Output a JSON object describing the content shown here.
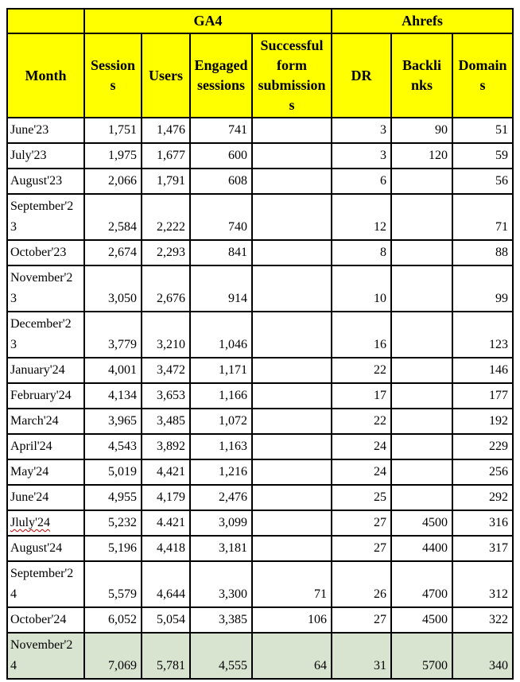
{
  "colors": {
    "header_bg": "#FFFF00",
    "highlight_row_bg": "#D8E4CF",
    "border": "#000000",
    "spellcheck_underline": "#C00000"
  },
  "table": {
    "group_header": {
      "corner": "",
      "ga4": "GA4",
      "ahrefs": "Ahrefs"
    },
    "columns": [
      "Month",
      "Sessions",
      "Users",
      "Engaged sessions",
      "Successful form submissions",
      "DR",
      "Backlinks",
      "Domains"
    ],
    "rows": [
      {
        "month": "June'23",
        "sessions": "1,751",
        "users": "1,476",
        "engaged_sessions": "741",
        "form_submissions": "",
        "dr": "3",
        "backlinks": "90",
        "domains": "51"
      },
      {
        "month": "July'23",
        "sessions": "1,975",
        "users": "1,677",
        "engaged_sessions": "600",
        "form_submissions": "",
        "dr": "3",
        "backlinks": "120",
        "domains": "59"
      },
      {
        "month": "August'23",
        "sessions": "2,066",
        "users": "1,791",
        "engaged_sessions": "608",
        "form_submissions": "",
        "dr": "6",
        "backlinks": "",
        "domains": "56"
      },
      {
        "month": "September'23",
        "sessions": "2,584",
        "users": "2,222",
        "engaged_sessions": "740",
        "form_submissions": "",
        "dr": "12",
        "backlinks": "",
        "domains": "71"
      },
      {
        "month": "October'23",
        "sessions": "2,674",
        "users": "2,293",
        "engaged_sessions": "841",
        "form_submissions": "",
        "dr": "8",
        "backlinks": "",
        "domains": "88"
      },
      {
        "month": "November'23",
        "sessions": "3,050",
        "users": "2,676",
        "engaged_sessions": "914",
        "form_submissions": "",
        "dr": "10",
        "backlinks": "",
        "domains": "99"
      },
      {
        "month": "December'23",
        "sessions": "3,779",
        "users": "3,210",
        "engaged_sessions": "1,046",
        "form_submissions": "",
        "dr": "16",
        "backlinks": "",
        "domains": "123"
      },
      {
        "month": "January'24",
        "sessions": "4,001",
        "users": "3,472",
        "engaged_sessions": "1,171",
        "form_submissions": "",
        "dr": "22",
        "backlinks": "",
        "domains": "146"
      },
      {
        "month": "February'24",
        "sessions": "4,134",
        "users": "3,653",
        "engaged_sessions": "1,166",
        "form_submissions": "",
        "dr": "17",
        "backlinks": "",
        "domains": "177"
      },
      {
        "month": "March'24",
        "sessions": "3,965",
        "users": "3,485",
        "engaged_sessions": "1,072",
        "form_submissions": "",
        "dr": "22",
        "backlinks": "",
        "domains": "192"
      },
      {
        "month": "April'24",
        "sessions": "4,543",
        "users": "3,892",
        "engaged_sessions": "1,163",
        "form_submissions": "",
        "dr": "24",
        "backlinks": "",
        "domains": "229"
      },
      {
        "month": "May'24",
        "sessions": "5,019",
        "users": "4,421",
        "engaged_sessions": "1,216",
        "form_submissions": "",
        "dr": "24",
        "backlinks": "",
        "domains": "256"
      },
      {
        "month": "June'24",
        "sessions": "4,955",
        "users": "4,179",
        "engaged_sessions": "2,476",
        "form_submissions": "",
        "dr": "25",
        "backlinks": "",
        "domains": "292"
      },
      {
        "month": "Jluly'24",
        "sessions": "5,232",
        "users": "4.421",
        "engaged_sessions": "3,099",
        "form_submissions": "",
        "dr": "27",
        "backlinks": "4500",
        "domains": "316",
        "misspelled": true
      },
      {
        "month": "August'24",
        "sessions": "5,196",
        "users": "4,418",
        "engaged_sessions": "3,181",
        "form_submissions": "",
        "dr": "27",
        "backlinks": "4400",
        "domains": "317"
      },
      {
        "month": "September'24",
        "sessions": "5,579",
        "users": "4,644",
        "engaged_sessions": "3,300",
        "form_submissions": "71",
        "dr": "26",
        "backlinks": "4700",
        "domains": "312"
      },
      {
        "month": "October'24",
        "sessions": "6,052",
        "users": "5,054",
        "engaged_sessions": "3,385",
        "form_submissions": "106",
        "dr": "27",
        "backlinks": "4500",
        "domains": "322"
      },
      {
        "month": "November'24",
        "sessions": "7,069",
        "users": "5,781",
        "engaged_sessions": "4,555",
        "form_submissions": "64",
        "dr": "31",
        "backlinks": "5700",
        "domains": "340",
        "highlight": true
      }
    ]
  }
}
